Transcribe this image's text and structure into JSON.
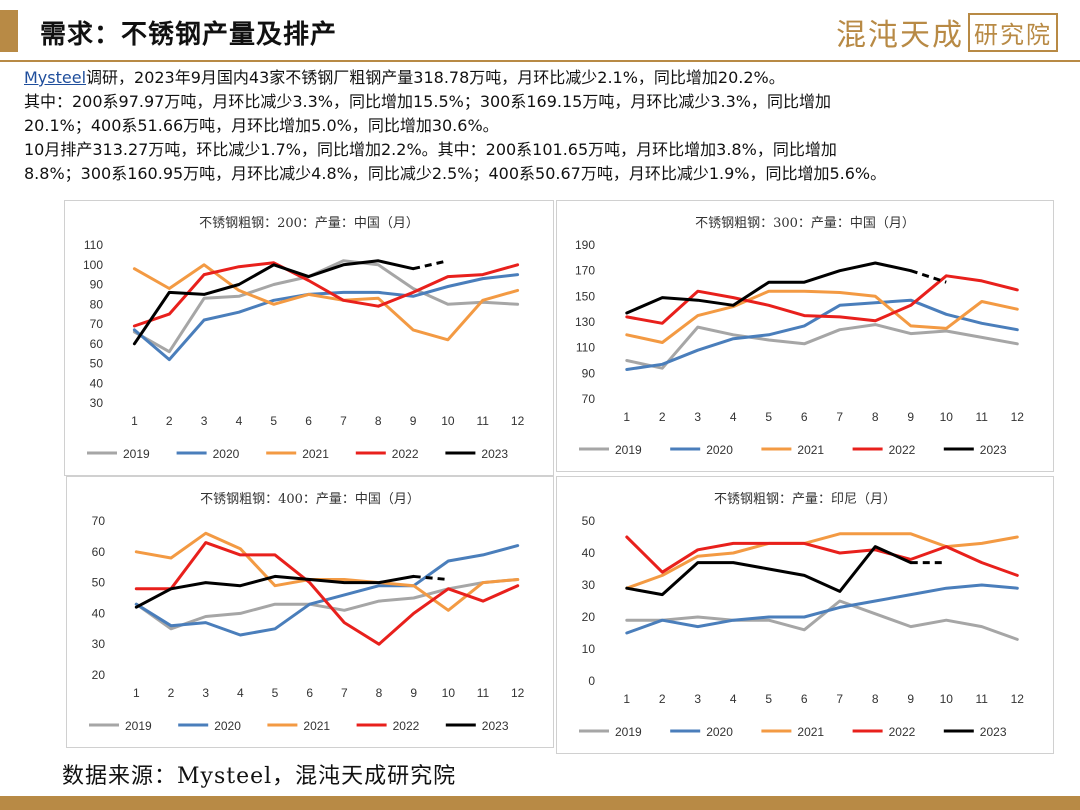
{
  "header": {
    "title": "需求：不锈钢产量及排产",
    "logo_text": "混沌天成",
    "logo_seal": "研究院"
  },
  "summary": {
    "link": "Mysteel",
    "line1_rest": "调研，2023年9月国内43家不锈钢厂粗钢产量318.78万吨，月环比减少2.1%，同比增加20.2%。",
    "line2": "其中：200系97.97万吨，月环比减少3.3%，同比增加15.5%；300系169.15万吨，月环比减少3.3%，同比增加",
    "line3": "20.1%；400系51.66万吨，月环比增加5.0%，同比增加30.6%。",
    "line4": "10月排产313.27万吨，环比减少1.7%，同比增加2.2%。其中：200系101.65万吨，月环比增加3.8%，同比增加",
    "line5": "8.8%；300系160.95万吨，月环比减少4.8%，同比减少2.5%；400系50.67万吨，月环比减少1.9%，同比增加5.6%。"
  },
  "series_colors": {
    "2019": "#a6a6a6",
    "2020": "#4a7ebb",
    "2021": "#f39a43",
    "2022": "#e8201c",
    "2023": "#000000"
  },
  "footer": {
    "source": "数据来源：Mysteel，混沌天成研究院"
  },
  "chart_data": [
    {
      "type": "line",
      "title": "不锈钢粗钢：200：产量：中国（月）",
      "categories": [
        "1",
        "2",
        "3",
        "4",
        "5",
        "6",
        "7",
        "8",
        "9",
        "10",
        "11",
        "12"
      ],
      "ylim": [
        30,
        110
      ],
      "yticks": [
        30,
        40,
        50,
        60,
        70,
        80,
        90,
        100,
        110
      ],
      "series": [
        {
          "name": "2019",
          "values": [
            66,
            56,
            83,
            84,
            90,
            94,
            102,
            100,
            88,
            80,
            81,
            80
          ]
        },
        {
          "name": "2020",
          "values": [
            67,
            52,
            72,
            76,
            82,
            85,
            86,
            86,
            84,
            89,
            93,
            95
          ]
        },
        {
          "name": "2021",
          "values": [
            98,
            88,
            100,
            87,
            80,
            85,
            82,
            83,
            67,
            62,
            82,
            87
          ]
        },
        {
          "name": "2022",
          "values": [
            69,
            75,
            95,
            99,
            101,
            92,
            82,
            79,
            86,
            94,
            95,
            100
          ]
        },
        {
          "name": "2023",
          "values": [
            60,
            86,
            85,
            90,
            100,
            94,
            100,
            102,
            98,
            null,
            null,
            null
          ]
        }
      ],
      "forecast": {
        "name": "2023",
        "from_x": 9,
        "from_y": 98,
        "to_x": 10,
        "to_y": 102
      }
    },
    {
      "type": "line",
      "title": "不锈钢粗钢：300：产量：中国（月）",
      "categories": [
        "1",
        "2",
        "3",
        "4",
        "5",
        "6",
        "7",
        "8",
        "9",
        "10",
        "11",
        "12"
      ],
      "ylim": [
        70,
        190
      ],
      "yticks": [
        70,
        90,
        110,
        130,
        150,
        170,
        190
      ],
      "series": [
        {
          "name": "2019",
          "values": [
            100,
            94,
            126,
            120,
            116,
            113,
            124,
            128,
            121,
            123,
            118,
            113
          ]
        },
        {
          "name": "2020",
          "values": [
            93,
            97,
            108,
            117,
            120,
            127,
            143,
            145,
            147,
            136,
            129,
            124
          ]
        },
        {
          "name": "2021",
          "values": [
            120,
            114,
            135,
            142,
            154,
            154,
            153,
            150,
            127,
            125,
            146,
            140
          ]
        },
        {
          "name": "2022",
          "values": [
            134,
            129,
            154,
            149,
            143,
            135,
            134,
            131,
            143,
            166,
            162,
            155
          ]
        },
        {
          "name": "2023",
          "values": [
            137,
            149,
            147,
            143,
            161,
            161,
            170,
            176,
            170,
            null,
            null,
            null
          ]
        }
      ],
      "forecast": {
        "name": "2023",
        "from_x": 9,
        "from_y": 170,
        "to_x": 10,
        "to_y": 161
      }
    },
    {
      "type": "line",
      "title": "不锈钢粗钢：400：产量：中国（月）",
      "categories": [
        "1",
        "2",
        "3",
        "4",
        "5",
        "6",
        "7",
        "8",
        "9",
        "10",
        "11",
        "12"
      ],
      "ylim": [
        20,
        70
      ],
      "yticks": [
        20,
        30,
        40,
        50,
        60,
        70
      ],
      "series": [
        {
          "name": "2019",
          "values": [
            43,
            35,
            39,
            40,
            43,
            43,
            41,
            44,
            45,
            48,
            50,
            51
          ]
        },
        {
          "name": "2020",
          "values": [
            43,
            36,
            37,
            33,
            35,
            43,
            46,
            49,
            49,
            57,
            59,
            62
          ]
        },
        {
          "name": "2021",
          "values": [
            60,
            58,
            66,
            61,
            49,
            51,
            51,
            50,
            49,
            41,
            50,
            51
          ]
        },
        {
          "name": "2022",
          "values": [
            48,
            48,
            63,
            59,
            59,
            50,
            37,
            30,
            40,
            48,
            44,
            49
          ]
        },
        {
          "name": "2023",
          "values": [
            42,
            48,
            50,
            49,
            52,
            51,
            50,
            50,
            52,
            null,
            null,
            null
          ]
        }
      ],
      "forecast": {
        "name": "2023",
        "from_x": 9,
        "from_y": 52,
        "to_x": 10,
        "to_y": 51
      }
    },
    {
      "type": "line",
      "title": "不锈钢粗钢：产量：印尼（月）",
      "categories": [
        "1",
        "2",
        "3",
        "4",
        "5",
        "6",
        "7",
        "8",
        "9",
        "10",
        "11",
        "12"
      ],
      "ylim": [
        0,
        50
      ],
      "yticks": [
        0,
        10,
        20,
        30,
        40,
        50
      ],
      "series": [
        {
          "name": "2019",
          "values": [
            19,
            19,
            20,
            19,
            19,
            16,
            25,
            21,
            17,
            19,
            17,
            13
          ]
        },
        {
          "name": "2020",
          "values": [
            15,
            19,
            17,
            19,
            20,
            20,
            23,
            25,
            27,
            29,
            30,
            29
          ]
        },
        {
          "name": "2021",
          "values": [
            29,
            33,
            39,
            40,
            43,
            43,
            46,
            46,
            46,
            42,
            43,
            45
          ]
        },
        {
          "name": "2022",
          "values": [
            45,
            34,
            41,
            43,
            43,
            43,
            40,
            41,
            38,
            42,
            37,
            33
          ]
        },
        {
          "name": "2023",
          "values": [
            29,
            27,
            37,
            37,
            35,
            33,
            28,
            42,
            37,
            null,
            null,
            null
          ]
        }
      ],
      "forecast": {
        "name": "2023",
        "from_x": 9,
        "from_y": 37,
        "to_x": 10,
        "to_y": 37
      }
    }
  ]
}
